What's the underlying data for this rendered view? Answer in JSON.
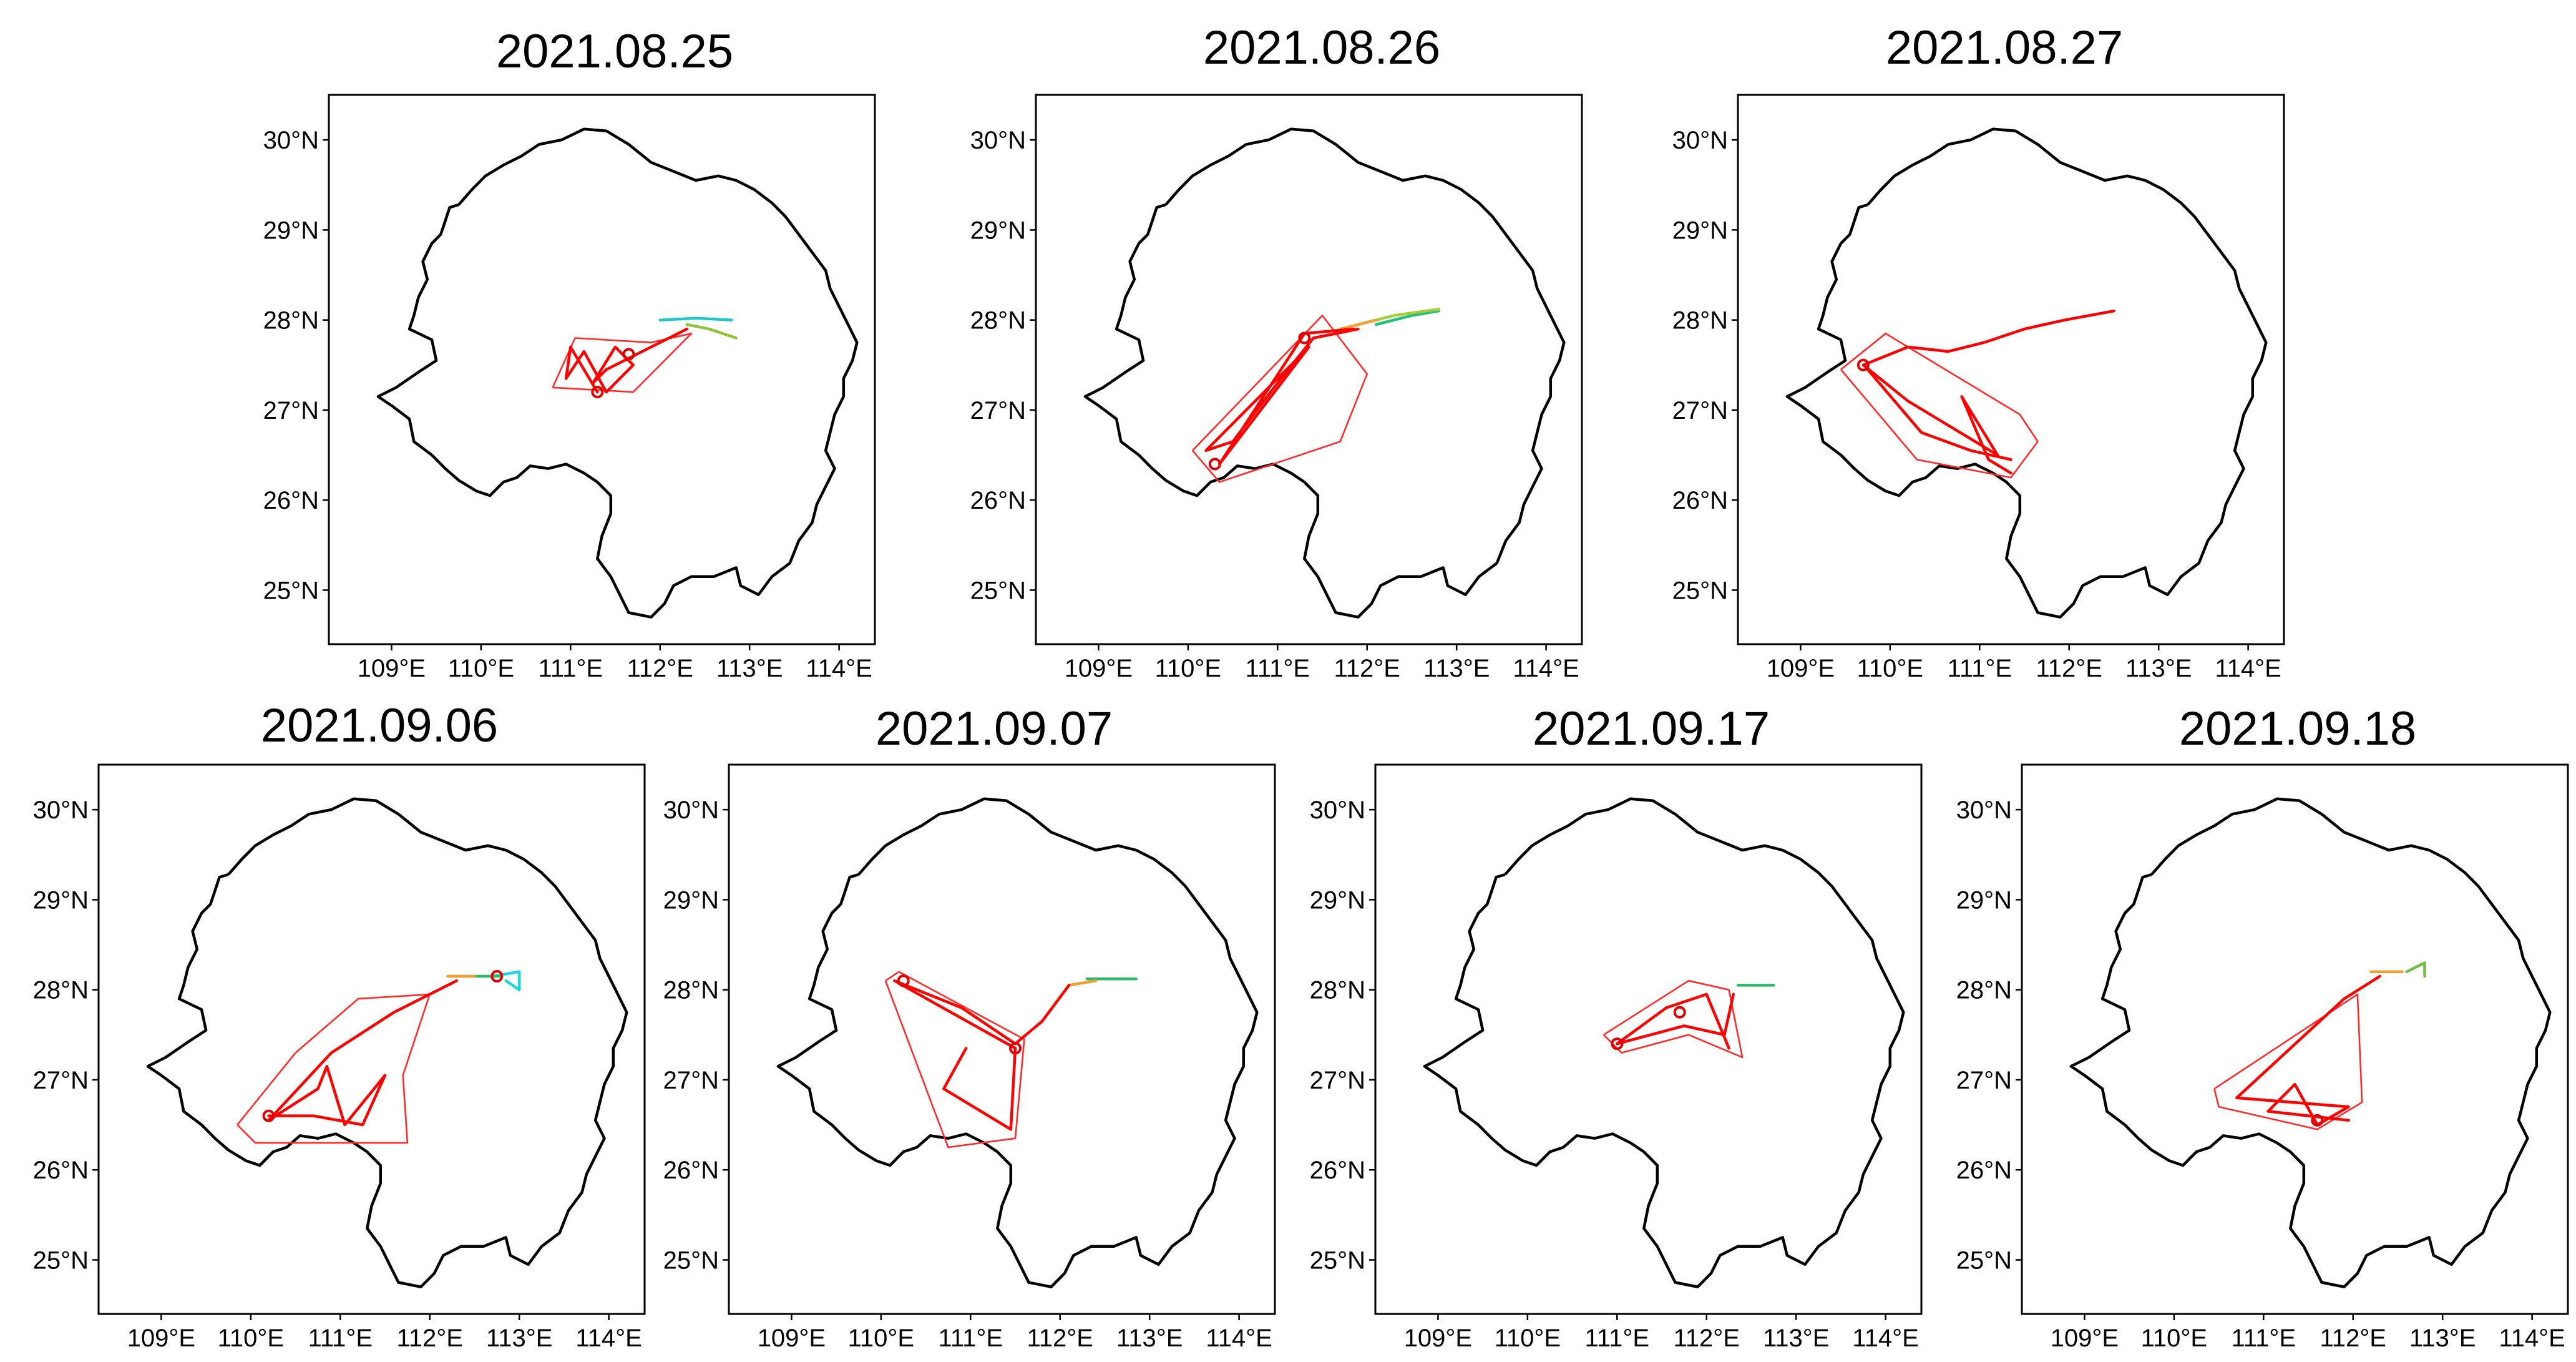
{
  "figure": {
    "province_border": [
      [
        109.75,
        29.28
      ],
      [
        109.65,
        29.25
      ],
      [
        109.6,
        29.1
      ],
      [
        109.55,
        28.95
      ],
      [
        109.45,
        28.85
      ],
      [
        109.35,
        28.65
      ],
      [
        109.4,
        28.45
      ],
      [
        109.3,
        28.25
      ],
      [
        109.25,
        28.05
      ],
      [
        109.2,
        27.9
      ],
      [
        109.45,
        27.78
      ],
      [
        109.5,
        27.55
      ],
      [
        109.3,
        27.42
      ],
      [
        109.05,
        27.25
      ],
      [
        108.85,
        27.15
      ],
      [
        109.0,
        27.05
      ],
      [
        109.2,
        26.9
      ],
      [
        109.25,
        26.65
      ],
      [
        109.45,
        26.5
      ],
      [
        109.6,
        26.35
      ],
      [
        109.75,
        26.22
      ],
      [
        109.95,
        26.1
      ],
      [
        110.1,
        26.05
      ],
      [
        110.25,
        26.2
      ],
      [
        110.4,
        26.25
      ],
      [
        110.55,
        26.38
      ],
      [
        110.75,
        26.35
      ],
      [
        110.95,
        26.4
      ],
      [
        111.15,
        26.3
      ],
      [
        111.3,
        26.2
      ],
      [
        111.45,
        26.05
      ],
      [
        111.45,
        25.85
      ],
      [
        111.35,
        25.6
      ],
      [
        111.3,
        25.35
      ],
      [
        111.45,
        25.15
      ],
      [
        111.55,
        24.95
      ],
      [
        111.65,
        24.75
      ],
      [
        111.9,
        24.7
      ],
      [
        112.05,
        24.85
      ],
      [
        112.15,
        25.05
      ],
      [
        112.35,
        25.15
      ],
      [
        112.6,
        25.15
      ],
      [
        112.85,
        25.25
      ],
      [
        112.9,
        25.05
      ],
      [
        113.1,
        24.95
      ],
      [
        113.25,
        25.15
      ],
      [
        113.45,
        25.3
      ],
      [
        113.55,
        25.55
      ],
      [
        113.7,
        25.75
      ],
      [
        113.75,
        25.95
      ],
      [
        113.85,
        26.15
      ],
      [
        113.95,
        26.35
      ],
      [
        113.85,
        26.55
      ],
      [
        113.9,
        26.75
      ],
      [
        113.95,
        26.95
      ],
      [
        114.05,
        27.15
      ],
      [
        114.05,
        27.35
      ],
      [
        114.15,
        27.55
      ],
      [
        114.2,
        27.75
      ],
      [
        114.1,
        27.95
      ],
      [
        114.0,
        28.15
      ],
      [
        113.9,
        28.35
      ],
      [
        113.85,
        28.55
      ],
      [
        113.7,
        28.75
      ],
      [
        113.55,
        28.95
      ],
      [
        113.4,
        29.15
      ],
      [
        113.25,
        29.3
      ],
      [
        113.05,
        29.45
      ],
      [
        112.85,
        29.55
      ],
      [
        112.65,
        29.6
      ],
      [
        112.4,
        29.55
      ],
      [
        112.15,
        29.65
      ],
      [
        111.9,
        29.75
      ],
      [
        111.65,
        29.95
      ],
      [
        111.4,
        30.1
      ],
      [
        111.15,
        30.12
      ],
      [
        110.9,
        30.0
      ],
      [
        110.65,
        29.95
      ],
      [
        110.45,
        29.82
      ],
      [
        110.25,
        29.72
      ],
      [
        110.05,
        29.6
      ],
      [
        109.9,
        29.45
      ],
      [
        109.75,
        29.28
      ]
    ],
    "x_ticks": [
      {
        "v": 109,
        "label": "109°E"
      },
      {
        "v": 110,
        "label": "110°E"
      },
      {
        "v": 111,
        "label": "111°E"
      },
      {
        "v": 112,
        "label": "112°E"
      },
      {
        "v": 113,
        "label": "113°E"
      },
      {
        "v": 114,
        "label": "114°E"
      }
    ],
    "y_ticks": [
      {
        "v": 30,
        "label": "30°N"
      },
      {
        "v": 29,
        "label": "29°N"
      },
      {
        "v": 28,
        "label": "28°N"
      },
      {
        "v": 27,
        "label": "27°N"
      },
      {
        "v": 26,
        "label": "26°N"
      },
      {
        "v": 25,
        "label": "25°N"
      }
    ],
    "xlim": [
      108.3,
      114.4
    ],
    "ylim": [
      24.4,
      30.5
    ]
  },
  "panels": [
    {
      "id": "p1",
      "title": "2021.08.25",
      "hull": [
        [
          110.8,
          27.25
        ],
        [
          111.05,
          27.8
        ],
        [
          111.9,
          27.75
        ],
        [
          112.35,
          27.85
        ],
        [
          111.7,
          27.2
        ],
        [
          110.8,
          27.25
        ]
      ],
      "tracks": [
        {
          "color": "#20c9c9",
          "points": [
            [
              112.0,
              28.0
            ],
            [
              112.4,
              28.02
            ],
            [
              112.8,
              28.0
            ]
          ]
        },
        {
          "color": "#8ec43a",
          "points": [
            [
              112.3,
              27.95
            ],
            [
              112.55,
              27.9
            ],
            [
              112.85,
              27.8
            ]
          ]
        },
        {
          "color": "#ff0000",
          "points": [
            [
              112.3,
              27.9
            ],
            [
              112.0,
              27.75
            ],
            [
              111.7,
              27.6
            ],
            [
              111.4,
              27.45
            ],
            [
              111.25,
              27.3
            ],
            [
              111.5,
              27.7
            ],
            [
              111.7,
              27.5
            ],
            [
              111.4,
              27.2
            ],
            [
              111.15,
              27.65
            ],
            [
              110.95,
              27.35
            ],
            [
              111.0,
              27.7
            ],
            [
              111.3,
              27.2
            ]
          ]
        }
      ],
      "markers": [
        [
          111.3,
          27.2
        ],
        [
          111.65,
          27.62
        ]
      ]
    },
    {
      "id": "p2",
      "title": "2021.08.26",
      "hull": [
        [
          110.05,
          26.55
        ],
        [
          110.35,
          26.2
        ],
        [
          111.7,
          26.65
        ],
        [
          112.0,
          27.4
        ],
        [
          111.5,
          28.05
        ],
        [
          110.05,
          26.55
        ]
      ],
      "tracks": [
        {
          "color": "#22c07a",
          "points": [
            [
              112.1,
              27.95
            ],
            [
              112.5,
              28.05
            ],
            [
              112.8,
              28.1
            ]
          ]
        },
        {
          "color": "#a4cc3c",
          "points": [
            [
              111.9,
              27.95
            ],
            [
              112.3,
              28.05
            ],
            [
              112.8,
              28.12
            ]
          ]
        },
        {
          "color": "#f0a032",
          "points": [
            [
              111.7,
              27.9
            ],
            [
              112.1,
              28.0
            ]
          ]
        },
        {
          "color": "#ff0000",
          "points": [
            [
              111.9,
              27.9
            ],
            [
              111.4,
              27.8
            ],
            [
              111.0,
              27.3
            ],
            [
              110.5,
              26.65
            ],
            [
              110.2,
              26.55
            ],
            [
              110.8,
              27.15
            ],
            [
              111.35,
              27.7
            ],
            [
              110.35,
              26.4
            ],
            [
              111.3,
              27.85
            ],
            [
              111.85,
              27.9
            ]
          ]
        }
      ],
      "markers": [
        [
          110.3,
          26.4
        ],
        [
          111.3,
          27.8
        ]
      ]
    },
    {
      "id": "p3",
      "title": "2021.08.27",
      "hull": [
        [
          109.45,
          27.45
        ],
        [
          109.95,
          27.85
        ],
        [
          111.45,
          26.95
        ],
        [
          111.65,
          26.65
        ],
        [
          111.35,
          26.25
        ],
        [
          110.3,
          26.45
        ],
        [
          109.45,
          27.45
        ]
      ],
      "tracks": [
        {
          "color": "#ff0000",
          "points": [
            [
              112.5,
              28.1
            ],
            [
              111.95,
              28.0
            ],
            [
              111.5,
              27.9
            ],
            [
              111.05,
              27.75
            ],
            [
              110.65,
              27.65
            ],
            [
              110.2,
              27.7
            ],
            [
              109.7,
              27.5
            ],
            [
              110.2,
              27.1
            ],
            [
              110.7,
              26.8
            ],
            [
              111.2,
              26.5
            ],
            [
              110.8,
              27.15
            ],
            [
              111.1,
              26.45
            ],
            [
              111.35,
              26.3
            ]
          ]
        },
        {
          "color": "#ff0000",
          "points": [
            [
              109.75,
              27.45
            ],
            [
              110.35,
              26.75
            ],
            [
              110.9,
              26.55
            ],
            [
              111.35,
              26.45
            ]
          ]
        }
      ],
      "markers": [
        [
          109.7,
          27.5
        ]
      ]
    },
    {
      "id": "p4",
      "title": "2021.09.06",
      "hull": [
        [
          109.85,
          26.5
        ],
        [
          110.05,
          26.3
        ],
        [
          111.75,
          26.3
        ],
        [
          111.7,
          27.05
        ],
        [
          112.0,
          27.95
        ],
        [
          111.2,
          27.9
        ],
        [
          110.5,
          27.3
        ],
        [
          109.85,
          26.5
        ]
      ],
      "tracks": [
        {
          "color": "#1fd4e0",
          "points": [
            [
              112.7,
              28.15
            ],
            [
              113.0,
              28.2
            ],
            [
              113.0,
              28.0
            ],
            [
              112.85,
              28.1
            ]
          ]
        },
        {
          "color": "#2db86a",
          "points": [
            [
              112.5,
              28.15
            ],
            [
              112.8,
              28.15
            ]
          ]
        },
        {
          "color": "#f0a032",
          "points": [
            [
              112.2,
              28.15
            ],
            [
              112.5,
              28.15
            ]
          ]
        },
        {
          "color": "#ff0000",
          "points": [
            [
              112.3,
              28.1
            ],
            [
              111.6,
              27.75
            ],
            [
              110.9,
              27.3
            ],
            [
              110.2,
              26.55
            ],
            [
              110.75,
              26.9
            ],
            [
              110.85,
              27.15
            ],
            [
              111.05,
              26.5
            ],
            [
              111.5,
              27.05
            ],
            [
              111.25,
              26.5
            ],
            [
              110.7,
              26.6
            ],
            [
              110.2,
              26.6
            ]
          ]
        }
      ],
      "markers": [
        [
          110.2,
          26.6
        ],
        [
          112.75,
          28.15
        ]
      ]
    },
    {
      "id": "p5",
      "title": "2021.09.07",
      "hull": [
        [
          110.05,
          28.1
        ],
        [
          110.2,
          28.2
        ],
        [
          111.6,
          27.45
        ],
        [
          111.5,
          26.35
        ],
        [
          110.75,
          26.25
        ],
        [
          110.05,
          28.1
        ]
      ],
      "tracks": [
        {
          "color": "#2db86a",
          "points": [
            [
              112.3,
              28.12
            ],
            [
              112.85,
              28.12
            ]
          ]
        },
        {
          "color": "#f0a032",
          "points": [
            [
              112.1,
              28.05
            ],
            [
              112.4,
              28.1
            ]
          ]
        },
        {
          "color": "#ff0000",
          "points": [
            [
              112.1,
              28.05
            ],
            [
              111.8,
              27.65
            ],
            [
              111.5,
              27.4
            ],
            [
              110.9,
              27.8
            ],
            [
              110.15,
              28.1
            ],
            [
              111.5,
              27.35
            ],
            [
              111.45,
              26.45
            ],
            [
              110.7,
              26.9
            ],
            [
              110.95,
              27.35
            ]
          ]
        }
      ],
      "markers": [
        [
          110.25,
          28.1
        ],
        [
          111.5,
          27.35
        ]
      ]
    },
    {
      "id": "p6",
      "title": "2021.09.17",
      "hull": [
        [
          110.85,
          27.5
        ],
        [
          111.05,
          27.3
        ],
        [
          111.8,
          27.5
        ],
        [
          112.4,
          27.25
        ],
        [
          112.25,
          28.0
        ],
        [
          111.8,
          28.1
        ],
        [
          110.85,
          27.5
        ]
      ],
      "tracks": [
        {
          "color": "#2db86a",
          "points": [
            [
              112.35,
              28.05
            ],
            [
              112.75,
              28.05
            ]
          ]
        },
        {
          "color": "#ff0000",
          "points": [
            [
              112.3,
              27.95
            ],
            [
              112.2,
              27.5
            ],
            [
              111.75,
              27.6
            ],
            [
              111.0,
              27.4
            ],
            [
              111.55,
              27.8
            ],
            [
              112.0,
              27.95
            ],
            [
              112.25,
              27.35
            ]
          ]
        }
      ],
      "markers": [
        [
          111.0,
          27.4
        ],
        [
          111.7,
          27.75
        ]
      ]
    },
    {
      "id": "p7",
      "title": "2021.09.18",
      "hull": [
        [
          110.45,
          26.9
        ],
        [
          110.5,
          26.7
        ],
        [
          111.6,
          26.45
        ],
        [
          112.1,
          26.75
        ],
        [
          112.05,
          27.95
        ],
        [
          110.45,
          26.9
        ]
      ],
      "tracks": [
        {
          "color": "#6cc043",
          "points": [
            [
              112.6,
              28.2
            ],
            [
              112.8,
              28.3
            ],
            [
              112.8,
              28.15
            ]
          ]
        },
        {
          "color": "#f0a032",
          "points": [
            [
              112.2,
              28.2
            ],
            [
              112.55,
              28.2
            ]
          ]
        },
        {
          "color": "#ff0000",
          "points": [
            [
              112.3,
              28.15
            ],
            [
              111.9,
              27.9
            ],
            [
              110.7,
              26.8
            ],
            [
              111.95,
              26.7
            ],
            [
              111.6,
              26.5
            ],
            [
              111.35,
              26.95
            ],
            [
              111.05,
              26.65
            ],
            [
              111.95,
              26.55
            ]
          ]
        }
      ],
      "markers": [
        [
          111.6,
          26.55
        ]
      ]
    }
  ]
}
